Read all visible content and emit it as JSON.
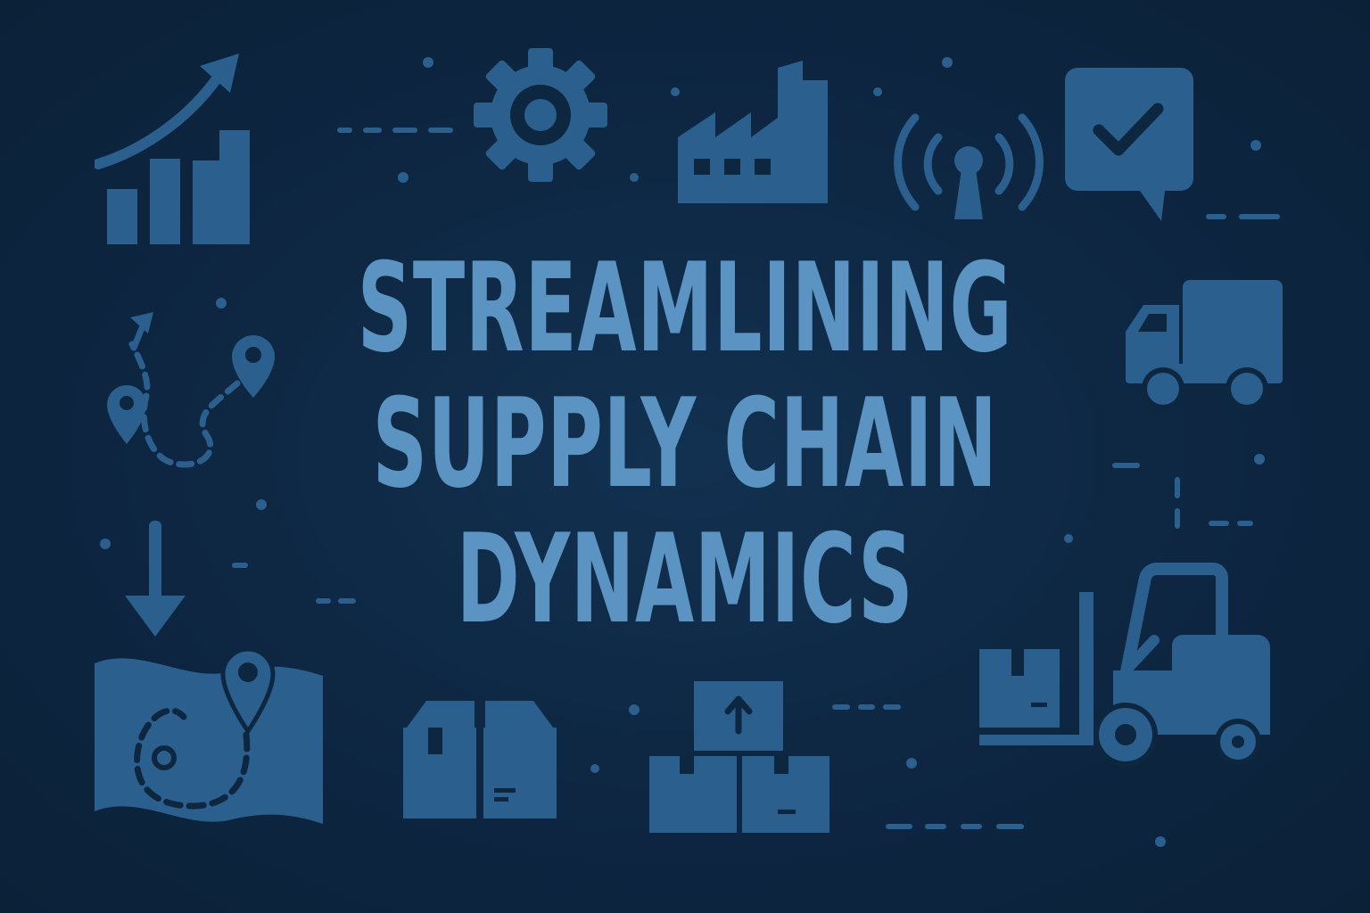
{
  "headline": {
    "line1": "STREAMLINING",
    "line2": "SUPPLY CHAIN",
    "line3": "DYNAMICS"
  },
  "colors": {
    "background": "#0e2740",
    "icon": "#2b5f8e",
    "headline": "#5b94c2"
  },
  "icons": [
    "growth-chart-icon",
    "gear-icon",
    "factory-icon",
    "signal-tower-icon",
    "chat-check-icon",
    "route-map-icon",
    "delivery-truck-icon",
    "down-arrow-icon",
    "location-map-icon",
    "open-box-icon",
    "stacked-boxes-icon",
    "forklift-icon"
  ]
}
